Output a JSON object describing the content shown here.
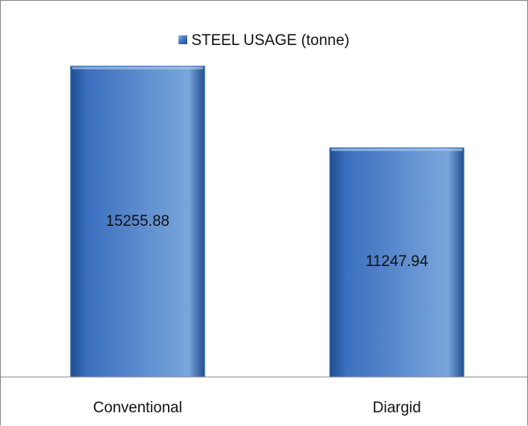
{
  "chart_data": {
    "type": "bar",
    "categories": [
      "Conventional",
      "Diargid"
    ],
    "series": [
      {
        "name": "STEEL USAGE (tonne)",
        "values": [
          15255.88,
          11247.94
        ]
      }
    ],
    "data_labels": [
      "15255.88",
      "11247.94"
    ],
    "legend": {
      "position": "top",
      "label": "STEEL USAGE (tonne)"
    },
    "value_axis_visible": false,
    "grid": false,
    "ylim": [
      0,
      18500
    ],
    "colors": {
      "bar_light": "#7aa6dc",
      "bar_mid": "#3b6fbf",
      "bar_dark": "#1f4e8f",
      "bar_edge": "#4f81bd",
      "axis": "#8c8c8c"
    }
  }
}
